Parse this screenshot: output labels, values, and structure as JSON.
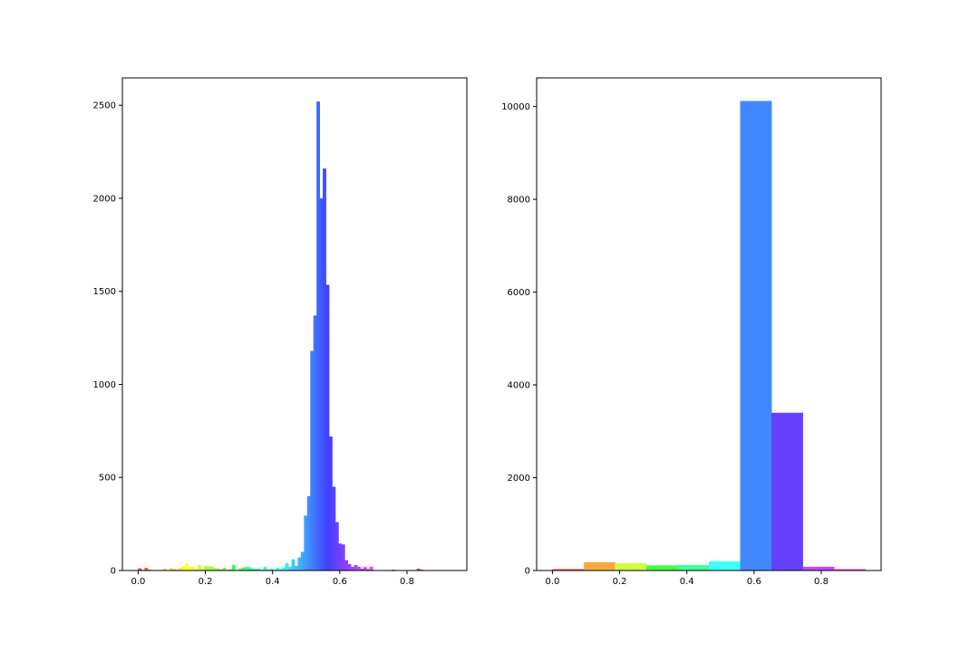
{
  "chart_data": [
    {
      "type": "bar",
      "title": "",
      "xlabel": "",
      "ylabel": "",
      "xlim": [
        -0.047,
        0.978
      ],
      "ylim": [
        0,
        2647
      ],
      "xticks": [
        0.0,
        0.2,
        0.4,
        0.6,
        0.8
      ],
      "xtick_labels": [
        "0.0",
        "0.2",
        "0.4",
        "0.6",
        "0.8"
      ],
      "yticks": [
        0,
        500,
        1000,
        1500,
        2000,
        2500
      ],
      "ytick_labels": [
        "0",
        "500",
        "1000",
        "1500",
        "2000",
        "2500"
      ],
      "grid": false,
      "bin_start": 0.0,
      "bin_width": 0.00931,
      "values": [
        12,
        3,
        15,
        5,
        0,
        0,
        0,
        3,
        8,
        2,
        12,
        9,
        6,
        15,
        22,
        40,
        18,
        22,
        8,
        30,
        10,
        25,
        22,
        22,
        12,
        10,
        6,
        15,
        5,
        8,
        30,
        0,
        10,
        15,
        20,
        18,
        12,
        10,
        10,
        5,
        20,
        5,
        10,
        5,
        15,
        8,
        18,
        40,
        20,
        60,
        25,
        70,
        100,
        295,
        400,
        1180,
        1370,
        2520,
        2000,
        2160,
        1535,
        720,
        450,
        260,
        145,
        140,
        55,
        35,
        20,
        30,
        20,
        10,
        18,
        8,
        20,
        0,
        0,
        0,
        0,
        0,
        0,
        5,
        0,
        0,
        0,
        0,
        0,
        0,
        0,
        10,
        5
      ],
      "colors": [
        "#ff4040",
        "#ff4d40",
        "#ff5a40",
        "#ff6740",
        "#ff7340",
        "#ff8040",
        "#ff8d40",
        "#ff9a40",
        "#ffa640",
        "#ffb340",
        "#ffc040",
        "#ffcd40",
        "#ffd940",
        "#ffe640",
        "#fff340",
        "#ffff40",
        "#f3ff40",
        "#e6ff40",
        "#d9ff40",
        "#cdff40",
        "#c0ff40",
        "#b3ff40",
        "#a6ff40",
        "#9aff40",
        "#8dff40",
        "#80ff40",
        "#73ff40",
        "#67ff40",
        "#5aff40",
        "#4dff40",
        "#40ff40",
        "#40ff4d",
        "#40ff5a",
        "#40ff67",
        "#40ff73",
        "#40ff80",
        "#40ff8d",
        "#40ff9a",
        "#40ffa6",
        "#40ffb3",
        "#40ffc0",
        "#40ffcd",
        "#40ffd9",
        "#40ffe6",
        "#40fff3",
        "#40ffff",
        "#40f3ff",
        "#40e6ff",
        "#40d9ff",
        "#40cdff",
        "#40c0ff",
        "#40b3ff",
        "#40a6ff",
        "#409aff",
        "#408dff",
        "#4080ff",
        "#4073ff",
        "#4067ff",
        "#405aff",
        "#404dff",
        "#4040ff",
        "#4d40ff",
        "#5a40ff",
        "#6740ff",
        "#7340ff",
        "#8040ff",
        "#8d40ff",
        "#9a40ff",
        "#a640ff",
        "#b340ff",
        "#c040ff",
        "#cd40ff",
        "#d940ff",
        "#e640ff",
        "#f340ff",
        "#ff40ff",
        "#ff40f3",
        "#ff40e6",
        "#ff40d9",
        "#ff40cd",
        "#ff40c0",
        "#ff40b3",
        "#ff40a6",
        "#ff409a",
        "#ff408d",
        "#ff4080",
        "#ff4073",
        "#ff4067",
        "#ff405a",
        "#ff404d",
        "#ff4040"
      ]
    },
    {
      "type": "bar",
      "title": "",
      "xlabel": "",
      "ylabel": "",
      "xlim": [
        -0.047,
        0.978
      ],
      "ylim": [
        0,
        10617
      ],
      "xticks": [
        0.0,
        0.2,
        0.4,
        0.6,
        0.8
      ],
      "xtick_labels": [
        "0.0",
        "0.2",
        "0.4",
        "0.6",
        "0.8"
      ],
      "yticks": [
        0,
        2000,
        4000,
        6000,
        8000,
        10000
      ],
      "ytick_labels": [
        "0",
        "2000",
        "4000",
        "6000",
        "8000",
        "10000"
      ],
      "grid": false,
      "bin_start": 0.0,
      "bin_width": 0.0931,
      "values": [
        30,
        180,
        160,
        110,
        120,
        200,
        10120,
        3400,
        80,
        30
      ],
      "colors": [
        "#ff4040",
        "#ffaa40",
        "#ccff40",
        "#40ff40",
        "#40ff99",
        "#40ffff",
        "#4088ff",
        "#6640ff",
        "#cc40ff",
        "#ff40bb"
      ]
    }
  ]
}
